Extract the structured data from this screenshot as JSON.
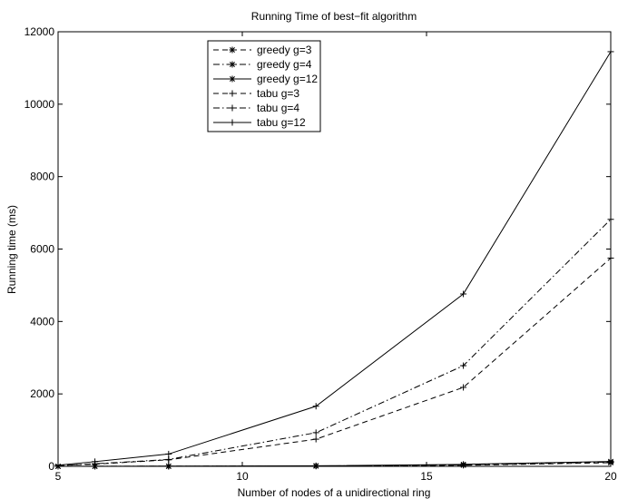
{
  "chart_data": {
    "type": "line",
    "title": "Running Time of best−fit algorithm",
    "xlabel": "Number of nodes of a unidirectional ring",
    "ylabel": "Running time (ms)",
    "xlim": [
      5,
      20
    ],
    "ylim": [
      0,
      12000
    ],
    "x_ticks": [
      5,
      10,
      15,
      20
    ],
    "y_ticks": [
      0,
      2000,
      4000,
      6000,
      8000,
      10000,
      12000
    ],
    "x_tick_labels": [
      "5",
      "10",
      "15",
      "20"
    ],
    "y_tick_labels": [
      "0",
      "2000",
      "4000",
      "6000",
      "8000",
      "10000",
      "12000"
    ],
    "grid": false,
    "legend_position": "top-left",
    "series": [
      {
        "name": "greedy g=3",
        "line_style": "dashed",
        "marker": "asterisk",
        "x": [
          5,
          6,
          8,
          12,
          16,
          20
        ],
        "y": [
          0,
          1,
          2,
          8,
          30,
          100
        ]
      },
      {
        "name": "greedy g=4",
        "line_style": "dashdot",
        "marker": "asterisk",
        "x": [
          5,
          6,
          8,
          12,
          16,
          20
        ],
        "y": [
          0,
          2,
          3,
          10,
          40,
          120
        ]
      },
      {
        "name": "greedy g=12",
        "line_style": "solid",
        "marker": "asterisk",
        "x": [
          5,
          6,
          8,
          12,
          16,
          20
        ],
        "y": [
          0,
          3,
          5,
          15,
          55,
          135
        ]
      },
      {
        "name": "tabu g=3",
        "line_style": "dashed",
        "marker": "plus",
        "x": [
          5,
          6,
          8,
          12,
          16,
          20
        ],
        "y": [
          20,
          60,
          180,
          750,
          2180,
          5750
        ]
      },
      {
        "name": "tabu g=4",
        "line_style": "dashdot",
        "marker": "plus",
        "x": [
          5,
          6,
          8,
          12,
          16,
          20
        ],
        "y": [
          20,
          70,
          190,
          930,
          2780,
          6820
        ]
      },
      {
        "name": "tabu g=12",
        "line_style": "solid",
        "marker": "plus",
        "x": [
          5,
          6,
          8,
          12,
          16,
          20
        ],
        "y": [
          30,
          130,
          340,
          1660,
          4760,
          11450
        ]
      }
    ]
  }
}
